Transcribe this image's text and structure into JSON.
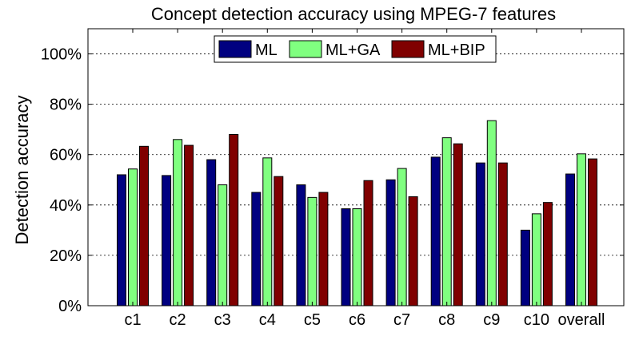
{
  "chart_data": {
    "type": "bar",
    "title": "Concept detection accuracy using MPEG-7 features",
    "xlabel": "",
    "ylabel": "Detection accuracy",
    "ylim": [
      0,
      110
    ],
    "yticks": [
      0,
      20,
      40,
      60,
      80,
      100
    ],
    "ytick_labels": [
      "0%",
      "20%",
      "40%",
      "60%",
      "80%",
      "100%"
    ],
    "grid": "horizontal dashed",
    "legend_position": "top-center",
    "categories": [
      "c1",
      "c2",
      "c3",
      "c4",
      "c5",
      "c6",
      "c7",
      "c8",
      "c9",
      "c10",
      "overall"
    ],
    "series": [
      {
        "name": "ML",
        "color": "#000080",
        "values": [
          52,
          51.7,
          58,
          45,
          48,
          38.5,
          50,
          59,
          56.7,
          30,
          52.3
        ]
      },
      {
        "name": "ML+GA",
        "color": "#80ff80",
        "values": [
          54.3,
          66,
          48,
          58.7,
          43,
          38.5,
          54.5,
          66.7,
          73.5,
          36.5,
          60.3
        ]
      },
      {
        "name": "ML+BIP",
        "color": "#800000",
        "values": [
          63.3,
          63.7,
          68,
          51.3,
          45,
          49.7,
          43.3,
          64.3,
          56.7,
          41,
          58.3
        ]
      }
    ]
  }
}
